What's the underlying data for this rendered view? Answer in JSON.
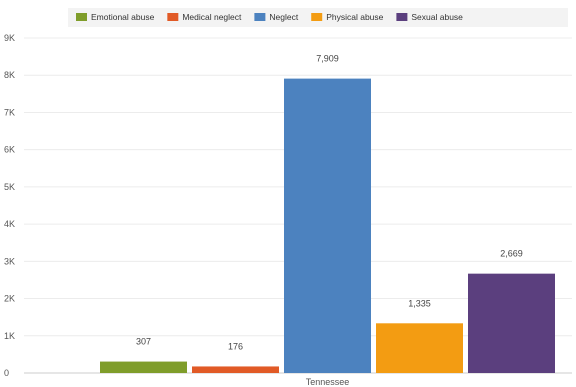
{
  "chart_data": {
    "type": "bar",
    "title": "",
    "xlabel": "",
    "ylabel": "",
    "categories": [
      "Tennessee"
    ],
    "ylim": [
      0,
      9000
    ],
    "yticks": [
      0,
      1000,
      2000,
      3000,
      4000,
      5000,
      6000,
      7000,
      8000,
      9000
    ],
    "ytick_labels": [
      "0",
      "1K",
      "2K",
      "3K",
      "4K",
      "5K",
      "6K",
      "7K",
      "8K",
      "9K"
    ],
    "grid": true,
    "legend_position": "top-right",
    "series": [
      {
        "name": "Emotional abuse",
        "values": [
          307
        ],
        "label": "307",
        "color": "#7f9d2a"
      },
      {
        "name": "Medical neglect",
        "values": [
          176
        ],
        "label": "176",
        "color": "#e15a26"
      },
      {
        "name": "Neglect",
        "values": [
          7909
        ],
        "label": "7,909",
        "color": "#4c82bf"
      },
      {
        "name": "Physical abuse",
        "values": [
          1335
        ],
        "label": "1,335",
        "color": "#f39c12"
      },
      {
        "name": "Sexual abuse",
        "values": [
          2669
        ],
        "label": "2,669",
        "color": "#5b3f7e"
      }
    ]
  }
}
